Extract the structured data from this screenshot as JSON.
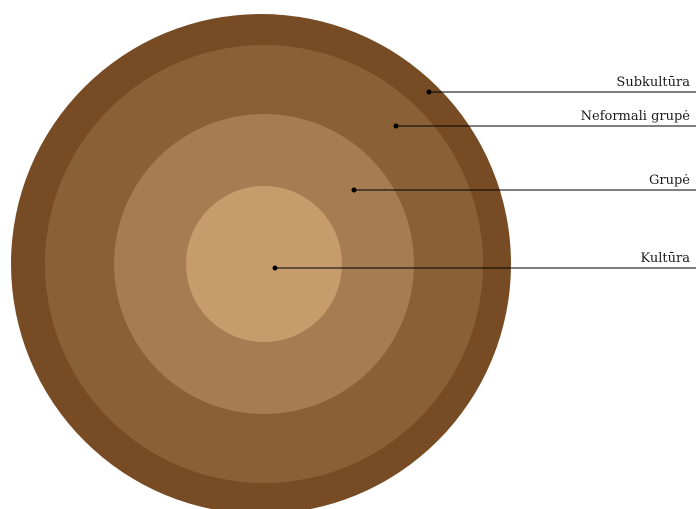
{
  "diagram": {
    "labels": {
      "subkultura": "Subkultūra",
      "neformali_grupe": "Neformali grupė",
      "grupe": "Grupė",
      "kultura": "Kultūra"
    },
    "colors": {
      "outer_ring": "#774c24",
      "second_ring": "#8a6036",
      "third_ring": "#a67c52",
      "inner_circle": "#c69c6c",
      "leader_line": "#000000"
    }
  }
}
